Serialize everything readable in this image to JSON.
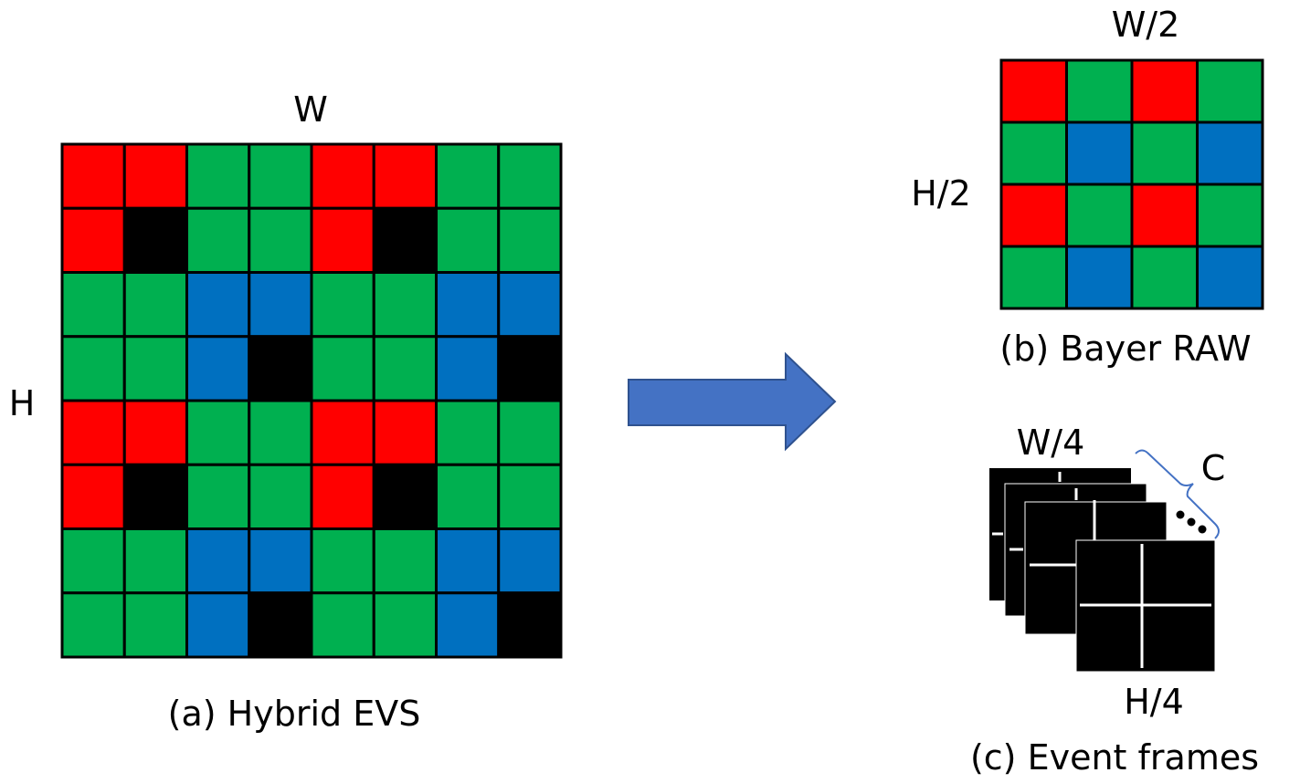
{
  "labels": {
    "hybrid_width": "W",
    "hybrid_height": "H",
    "hybrid_caption": "(a) Hybrid EVS",
    "bayer_width": "W/2",
    "bayer_height": "H/2",
    "bayer_caption": "(b) Bayer RAW",
    "event_width": "W/4",
    "event_height": "H/4",
    "event_channels": "C",
    "event_caption": "(c) Event frames"
  },
  "colors": {
    "R": "#ff0000",
    "G": "#00b050",
    "B": "#0070c0",
    "K": "#000000",
    "arrow": "#4472c4",
    "arrow_stroke": "#2f528f",
    "bracket": "#4472c4"
  },
  "hybrid_grid": [
    [
      "R",
      "R",
      "G",
      "G",
      "R",
      "R",
      "G",
      "G"
    ],
    [
      "R",
      "K",
      "G",
      "G",
      "R",
      "K",
      "G",
      "G"
    ],
    [
      "G",
      "G",
      "B",
      "B",
      "G",
      "G",
      "B",
      "B"
    ],
    [
      "G",
      "G",
      "B",
      "K",
      "G",
      "G",
      "B",
      "K"
    ],
    [
      "R",
      "R",
      "G",
      "G",
      "R",
      "R",
      "G",
      "G"
    ],
    [
      "R",
      "K",
      "G",
      "G",
      "R",
      "K",
      "G",
      "G"
    ],
    [
      "G",
      "G",
      "B",
      "B",
      "G",
      "G",
      "B",
      "B"
    ],
    [
      "G",
      "G",
      "B",
      "K",
      "G",
      "G",
      "B",
      "K"
    ]
  ],
  "bayer_grid": [
    [
      "R",
      "G",
      "R",
      "G"
    ],
    [
      "G",
      "B",
      "G",
      "B"
    ],
    [
      "R",
      "G",
      "R",
      "G"
    ],
    [
      "G",
      "B",
      "G",
      "B"
    ]
  ]
}
